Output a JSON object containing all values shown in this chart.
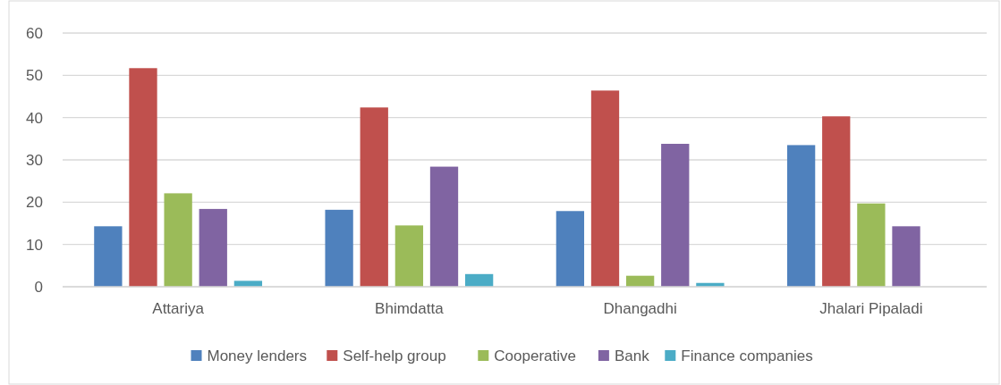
{
  "chart_data": {
    "type": "bar",
    "categories": [
      "Attariya",
      "Bhimdatta",
      "Dhangadhi",
      "Jhalari Pipaladi"
    ],
    "series": [
      {
        "name": "Money lenders",
        "color": "#4f81bd",
        "values": [
          14.3,
          18.2,
          17.9,
          33.5
        ]
      },
      {
        "name": "Self-help group",
        "color": "#c0504d",
        "values": [
          51.7,
          42.4,
          46.4,
          40.3
        ]
      },
      {
        "name": "Cooperative",
        "color": "#9bbb59",
        "values": [
          22.1,
          14.5,
          2.6,
          19.7
        ]
      },
      {
        "name": "Bank",
        "color": "#8064a2",
        "values": [
          18.4,
          28.4,
          33.8,
          14.3
        ]
      },
      {
        "name": "Finance companies",
        "color": "#4bacc6",
        "values": [
          1.4,
          3.0,
          0.9,
          0
        ]
      }
    ],
    "ylim": [
      0,
      60
    ],
    "yticks": [
      0,
      10,
      20,
      30,
      40,
      50,
      60
    ],
    "grid": "y",
    "legend": "bottom"
  }
}
